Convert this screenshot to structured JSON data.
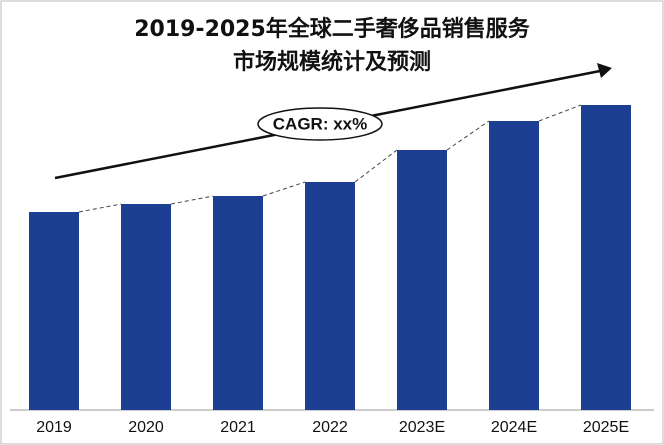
{
  "chart_data": {
    "type": "bar",
    "title": "2019-2025年全球二手奢侈品销售服务",
    "subtitle": "市场规模统计及预测",
    "annotation": "CAGR: xx%",
    "categories": [
      "2019",
      "2020",
      "2021",
      "2022",
      "2023E",
      "2024E",
      "2025E"
    ],
    "values": [
      198,
      206,
      214,
      228,
      260,
      289,
      305
    ],
    "color": "#1c3f94",
    "ylim": [
      0,
      330
    ]
  }
}
